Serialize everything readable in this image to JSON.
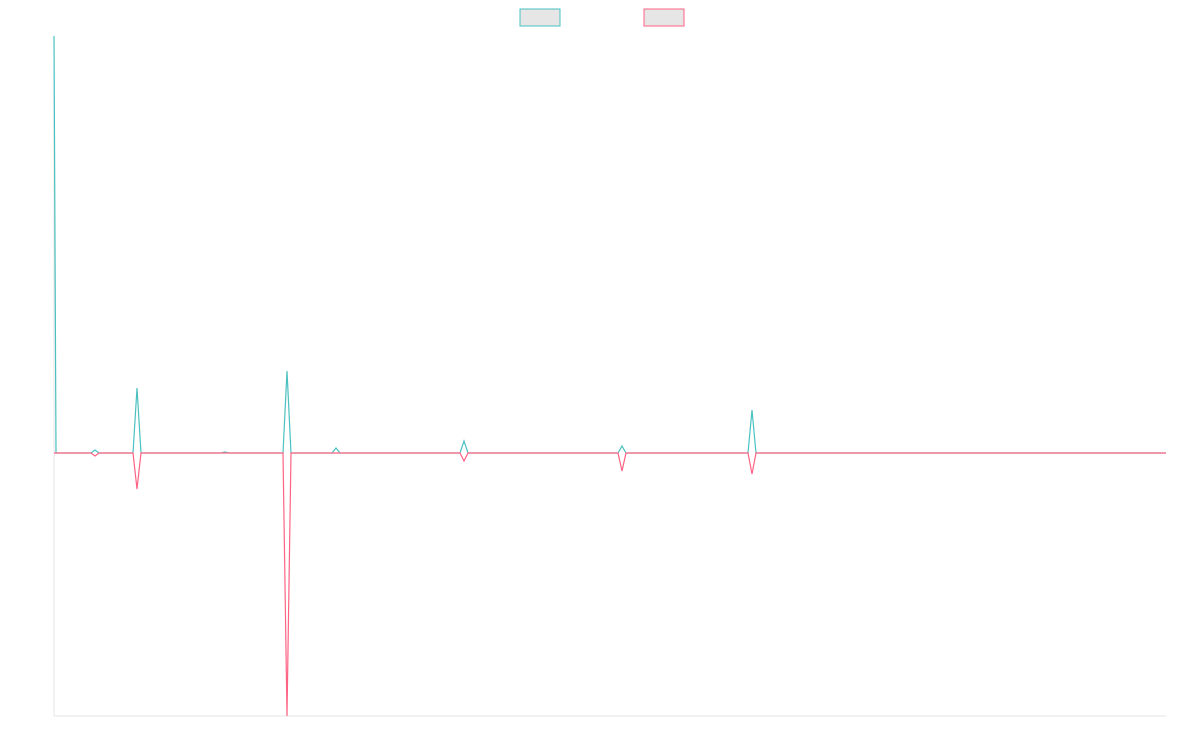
{
  "chart_data": {
    "type": "line",
    "x": [
      0,
      2,
      37,
      41,
      45,
      79,
      83,
      87,
      167,
      171,
      175,
      229,
      233,
      237,
      278,
      282,
      286,
      406,
      410,
      414,
      564,
      568,
      572,
      694,
      698,
      702,
      1112
    ],
    "series": [
      {
        "color": "#4bc0c0",
        "values": [
          417,
          0,
          0,
          3,
          0,
          0,
          65,
          0,
          0,
          1,
          0,
          0,
          82,
          0,
          0,
          5,
          0,
          0,
          12,
          0,
          0,
          7,
          0,
          0,
          43,
          0,
          0
        ]
      },
      {
        "color": "#ff6384",
        "values": [
          0,
          0,
          0,
          -3,
          0,
          0,
          -36,
          0,
          0,
          0,
          0,
          0,
          -263,
          0,
          0,
          0,
          0,
          0,
          -8,
          0,
          0,
          -18,
          0,
          0,
          -21,
          0,
          0
        ]
      }
    ],
    "xlim": [
      0,
      1112
    ],
    "ylim": [
      -263,
      417
    ],
    "legend": "top"
  }
}
